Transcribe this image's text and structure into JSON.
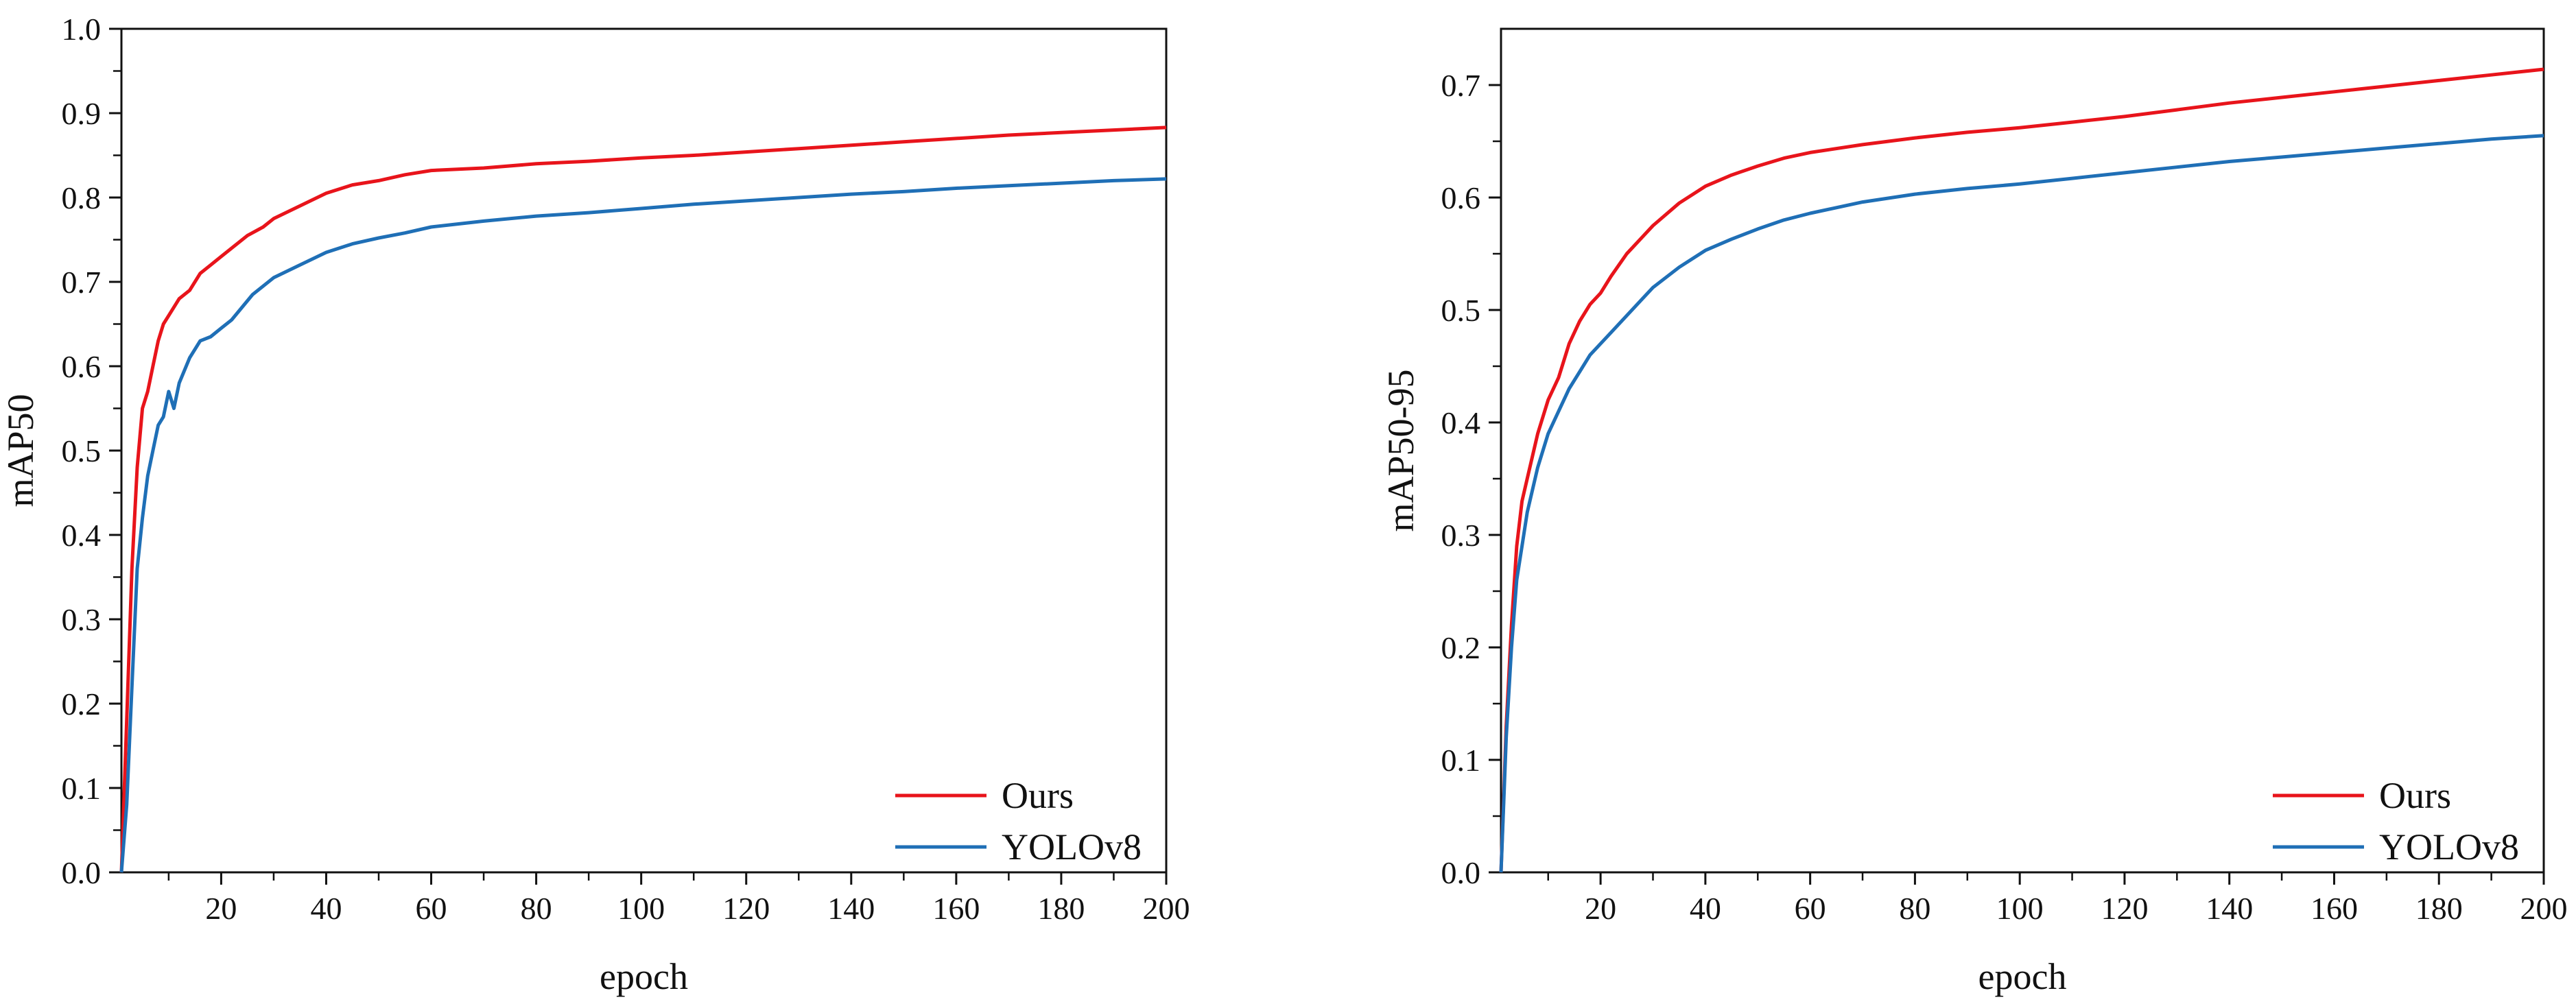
{
  "chart_data": [
    {
      "type": "line",
      "title": "",
      "xlabel": "epoch",
      "ylabel": "mAP50",
      "xlim": [
        1,
        200
      ],
      "ylim": [
        0.0,
        1.0
      ],
      "x_ticks": [
        20,
        40,
        60,
        80,
        100,
        120,
        140,
        160,
        180,
        200
      ],
      "x_tick_labels": [
        "20",
        "40",
        "60",
        "80",
        "100",
        "120",
        "140",
        "160",
        "180",
        "200"
      ],
      "y_ticks": [
        0.0,
        0.1,
        0.2,
        0.3,
        0.4,
        0.5,
        0.6,
        0.7,
        0.8,
        0.9,
        1.0
      ],
      "y_tick_labels": [
        "0.0",
        "0.1",
        "0.2",
        "0.3",
        "0.4",
        "0.5",
        "0.6",
        "0.7",
        "0.8",
        "0.9",
        "1.0"
      ],
      "legend_position": "bottom-right",
      "series": [
        {
          "name": "Ours",
          "color": "#e8141b",
          "x": [
            1,
            2,
            3,
            4,
            5,
            6,
            7,
            8,
            9,
            10,
            12,
            14,
            16,
            18,
            20,
            22,
            25,
            28,
            30,
            35,
            40,
            45,
            50,
            55,
            60,
            70,
            80,
            90,
            100,
            110,
            120,
            130,
            140,
            150,
            160,
            170,
            180,
            190,
            200
          ],
          "y": [
            0.0,
            0.18,
            0.36,
            0.48,
            0.55,
            0.57,
            0.6,
            0.63,
            0.65,
            0.66,
            0.68,
            0.69,
            0.71,
            0.72,
            0.73,
            0.74,
            0.755,
            0.765,
            0.775,
            0.79,
            0.805,
            0.815,
            0.82,
            0.827,
            0.832,
            0.835,
            0.84,
            0.843,
            0.847,
            0.85,
            0.854,
            0.858,
            0.862,
            0.866,
            0.87,
            0.874,
            0.877,
            0.88,
            0.883
          ]
        },
        {
          "name": "YOLOv8",
          "color": "#1f6fb6",
          "x": [
            1,
            2,
            3,
            4,
            5,
            6,
            7,
            8,
            9,
            10,
            11,
            12,
            14,
            16,
            18,
            20,
            22,
            24,
            26,
            28,
            30,
            35,
            40,
            45,
            50,
            55,
            60,
            70,
            80,
            90,
            100,
            110,
            120,
            130,
            140,
            150,
            160,
            170,
            180,
            190,
            200
          ],
          "y": [
            0.0,
            0.08,
            0.22,
            0.36,
            0.42,
            0.47,
            0.5,
            0.53,
            0.54,
            0.57,
            0.55,
            0.58,
            0.61,
            0.63,
            0.635,
            0.645,
            0.655,
            0.67,
            0.685,
            0.695,
            0.705,
            0.72,
            0.735,
            0.745,
            0.752,
            0.758,
            0.765,
            0.772,
            0.778,
            0.782,
            0.787,
            0.792,
            0.796,
            0.8,
            0.804,
            0.807,
            0.811,
            0.814,
            0.817,
            0.82,
            0.822
          ]
        }
      ]
    },
    {
      "type": "line",
      "title": "",
      "xlabel": "epoch",
      "ylabel": "mAP50-95",
      "xlim": [
        1,
        200
      ],
      "ylim": [
        0.0,
        0.75
      ],
      "x_ticks": [
        20,
        40,
        60,
        80,
        100,
        120,
        140,
        160,
        180,
        200
      ],
      "x_tick_labels": [
        "20",
        "40",
        "60",
        "80",
        "100",
        "120",
        "140",
        "160",
        "180",
        "200"
      ],
      "y_ticks": [
        0.0,
        0.1,
        0.2,
        0.3,
        0.4,
        0.5,
        0.6,
        0.7
      ],
      "y_tick_labels": [
        "0.0",
        "0.1",
        "0.2",
        "0.3",
        "0.4",
        "0.5",
        "0.6",
        "0.7"
      ],
      "legend_position": "bottom-right",
      "series": [
        {
          "name": "Ours",
          "color": "#e8141b",
          "x": [
            1,
            2,
            3,
            4,
            5,
            6,
            8,
            10,
            12,
            14,
            16,
            18,
            20,
            22,
            25,
            28,
            30,
            35,
            40,
            45,
            50,
            55,
            60,
            70,
            80,
            90,
            100,
            110,
            120,
            130,
            140,
            150,
            160,
            170,
            180,
            190,
            200
          ],
          "y": [
            0.0,
            0.13,
            0.22,
            0.29,
            0.33,
            0.35,
            0.39,
            0.42,
            0.44,
            0.47,
            0.49,
            0.505,
            0.515,
            0.53,
            0.55,
            0.565,
            0.575,
            0.595,
            0.61,
            0.62,
            0.628,
            0.635,
            0.64,
            0.647,
            0.653,
            0.658,
            0.662,
            0.667,
            0.672,
            0.678,
            0.684,
            0.689,
            0.694,
            0.699,
            0.704,
            0.709,
            0.714
          ]
        },
        {
          "name": "YOLOv8",
          "color": "#1f6fb6",
          "x": [
            1,
            2,
            3,
            4,
            5,
            6,
            8,
            10,
            12,
            14,
            16,
            18,
            20,
            22,
            25,
            28,
            30,
            35,
            40,
            45,
            50,
            55,
            60,
            70,
            80,
            90,
            100,
            110,
            120,
            130,
            140,
            150,
            160,
            170,
            180,
            190,
            200
          ],
          "y": [
            0.0,
            0.12,
            0.2,
            0.26,
            0.29,
            0.32,
            0.36,
            0.39,
            0.41,
            0.43,
            0.445,
            0.46,
            0.47,
            0.48,
            0.495,
            0.51,
            0.52,
            0.538,
            0.553,
            0.563,
            0.572,
            0.58,
            0.586,
            0.596,
            0.603,
            0.608,
            0.612,
            0.617,
            0.622,
            0.627,
            0.632,
            0.636,
            0.64,
            0.644,
            0.648,
            0.652,
            0.655
          ]
        }
      ]
    }
  ]
}
